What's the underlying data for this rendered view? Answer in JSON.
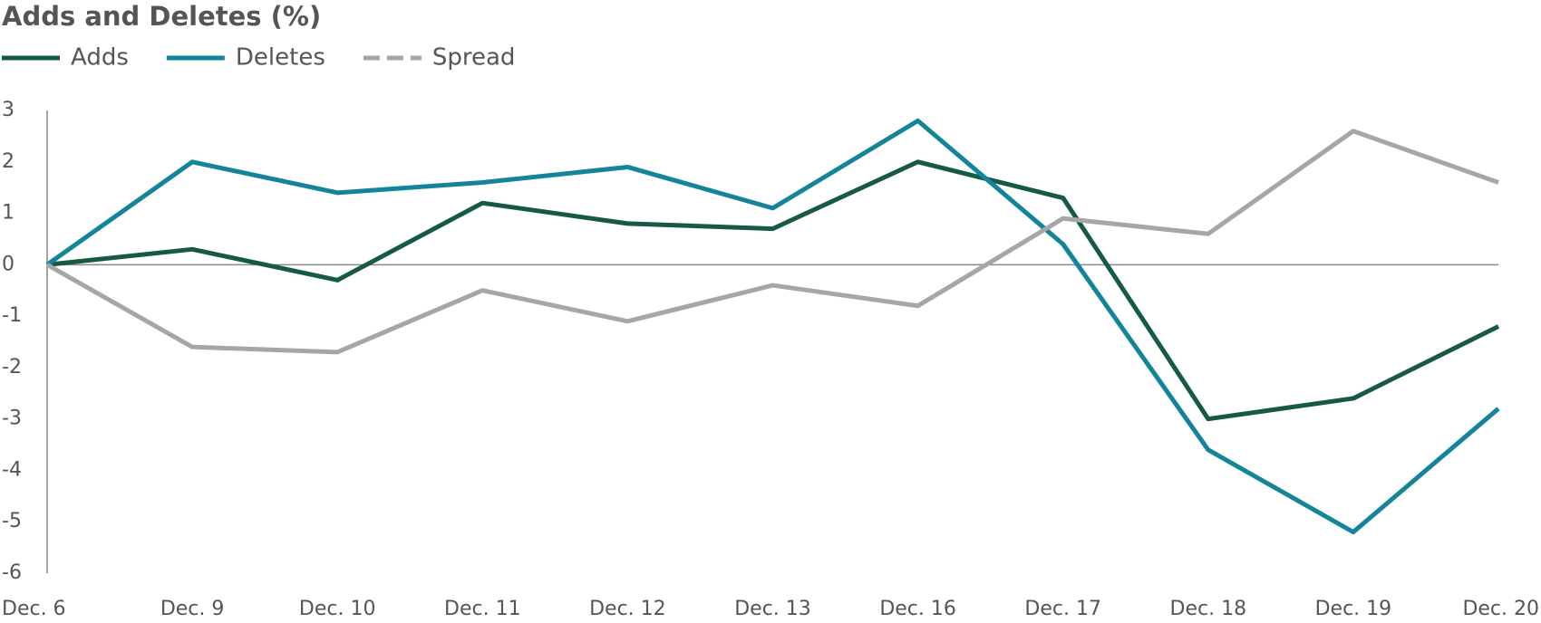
{
  "chart_data": {
    "type": "line",
    "title": "Adds and Deletes (%)",
    "categories": [
      "Dec. 6",
      "Dec. 9",
      "Dec. 10",
      "Dec. 11",
      "Dec. 12",
      "Dec. 13",
      "Dec. 16",
      "Dec. 17",
      "Dec. 18",
      "Dec. 19",
      "Dec. 20"
    ],
    "series": [
      {
        "name": "Adds",
        "color": "#165a43",
        "dashed": false,
        "values": [
          0,
          0.3,
          -0.3,
          1.2,
          0.8,
          0.7,
          2.0,
          1.3,
          -3.0,
          -2.6,
          -1.2
        ]
      },
      {
        "name": "Deletes",
        "color": "#13849a",
        "dashed": false,
        "values": [
          0,
          2.0,
          1.4,
          1.6,
          1.9,
          1.1,
          2.8,
          0.4,
          -3.6,
          -5.2,
          -2.8
        ]
      },
      {
        "name": "Spread",
        "color": "#a6a6a6",
        "dashed": true,
        "values": [
          0,
          -1.6,
          -1.7,
          -0.5,
          -1.1,
          -0.4,
          -0.8,
          0.9,
          0.6,
          2.6,
          1.6
        ]
      }
    ],
    "ylim": [
      -6,
      3
    ],
    "yticks": [
      -6,
      -5,
      -4,
      -3,
      -2,
      -1,
      0,
      1,
      2,
      3
    ],
    "grid": false
  }
}
